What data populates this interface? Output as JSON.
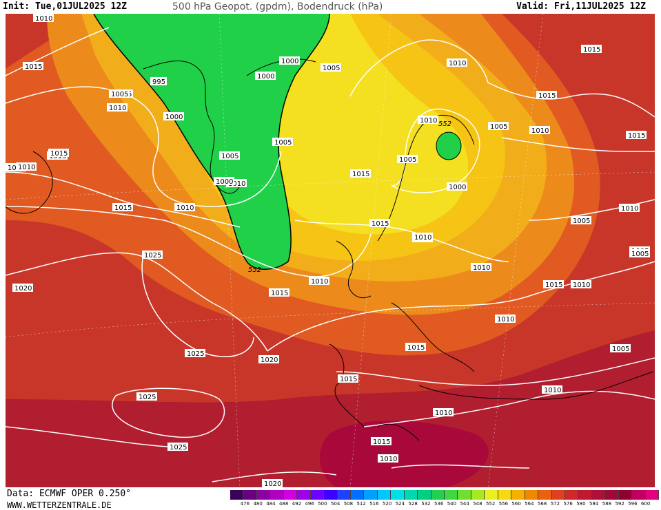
{
  "header": {
    "init": "Init: Tue,01JUL2025 12Z",
    "title": "500 hPa Geopot. (gpdm), Bodendruck (hPa)",
    "valid": "Valid: Fri,11JUL2025 12Z"
  },
  "footer": {
    "data_source": "Data: ECMWF OPER 0.250°",
    "url": "WWW.WETTERZENTRALE.DE"
  },
  "colors": {
    "green": "#1fd24a",
    "yellow": "#f2d21a",
    "orange": "#f0a21a",
    "dark_orange": "#e0661e",
    "red": "#c8362a",
    "dark_red": "#a8142a",
    "magenta": "#b0003c"
  },
  "scale": {
    "labels": [
      "476",
      "480",
      "484",
      "488",
      "492",
      "496",
      "500",
      "504",
      "508",
      "512",
      "516",
      "520",
      "524",
      "528",
      "532",
      "536",
      "540",
      "544",
      "548",
      "552",
      "556",
      "560",
      "564",
      "568",
      "572",
      "576",
      "580",
      "584",
      "588",
      "592",
      "596",
      "600"
    ],
    "colors": [
      "#3a005a",
      "#6a0080",
      "#8a00a0",
      "#b000c0",
      "#d000e0",
      "#a000e8",
      "#7000ff",
      "#4000ff",
      "#2040ff",
      "#0070ff",
      "#00a0ff",
      "#00c8ff",
      "#00e0e8",
      "#00d8b0",
      "#00d080",
      "#20d050",
      "#40d840",
      "#70e030",
      "#a8e820",
      "#e8f020",
      "#f8d810",
      "#f8b000",
      "#f08800",
      "#e86010",
      "#e04020",
      "#d02828",
      "#c01830",
      "#b01038",
      "#a00838",
      "#900030",
      "#c00060",
      "#e00080"
    ]
  },
  "isobar_labels": [
    {
      "text": "1010"
    },
    {
      "text": "1015"
    },
    {
      "text": "1005"
    },
    {
      "text": "1010"
    },
    {
      "text": "995"
    },
    {
      "text": "1000"
    },
    {
      "text": "1000"
    },
    {
      "text": "1000"
    },
    {
      "text": "1005"
    },
    {
      "text": "1010"
    },
    {
      "text": "1015"
    },
    {
      "text": "1015"
    },
    {
      "text": "1005"
    },
    {
      "text": "1000"
    },
    {
      "text": "1010"
    },
    {
      "text": "1015"
    },
    {
      "text": "1005"
    },
    {
      "text": "1015"
    },
    {
      "text": "1010"
    },
    {
      "text": "1015"
    },
    {
      "text": "1010"
    },
    {
      "text": "1015"
    },
    {
      "text": "1015"
    },
    {
      "text": "1010"
    },
    {
      "text": "1010"
    },
    {
      "text": "1015"
    },
    {
      "text": "1005"
    },
    {
      "text": "1005"
    },
    {
      "text": "1000"
    },
    {
      "text": "1005"
    },
    {
      "text": "1010"
    },
    {
      "text": "1005"
    },
    {
      "text": "1015"
    },
    {
      "text": "1010"
    },
    {
      "text": "1010"
    },
    {
      "text": "1025"
    },
    {
      "text": "1020"
    },
    {
      "text": "1015"
    },
    {
      "text": "1010"
    },
    {
      "text": "1010"
    },
    {
      "text": "1015"
    },
    {
      "text": "1010"
    },
    {
      "text": "1005"
    },
    {
      "text": "1025"
    },
    {
      "text": "1020"
    },
    {
      "text": "1015"
    },
    {
      "text": "1015"
    },
    {
      "text": "1010"
    },
    {
      "text": "1025"
    },
    {
      "text": "1010"
    },
    {
      "text": "1015"
    },
    {
      "text": "1010"
    },
    {
      "text": "1010"
    },
    {
      "text": "1025"
    },
    {
      "text": "1020"
    },
    {
      "text": "1005"
    },
    {
      "text": "1005"
    }
  ],
  "contour_labels": [
    {
      "text": "552"
    },
    {
      "text": "552"
    }
  ]
}
